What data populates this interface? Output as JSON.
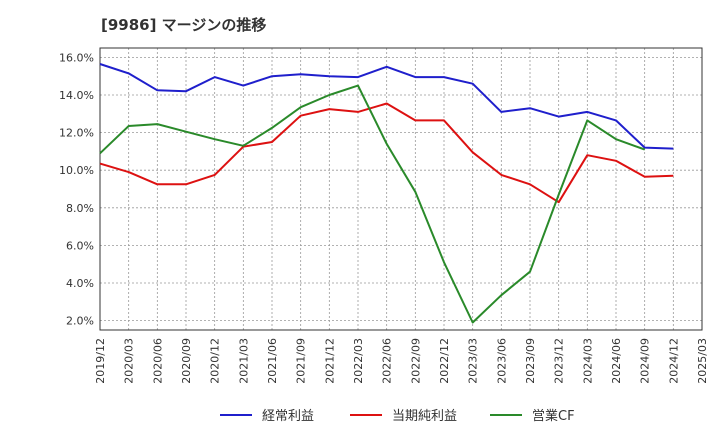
{
  "chart_data": {
    "type": "line",
    "title": "[9986]  マージンの推移",
    "xlabel": "",
    "ylabel": "",
    "x": [
      "2019/12",
      "2020/03",
      "2020/06",
      "2020/09",
      "2020/12",
      "2021/03",
      "2021/06",
      "2021/09",
      "2021/12",
      "2022/03",
      "2022/06",
      "2022/09",
      "2022/12",
      "2023/03",
      "2023/06",
      "2023/09",
      "2023/12",
      "2024/03",
      "2024/06",
      "2024/09",
      "2024/12",
      "2025/03"
    ],
    "ylim": [
      1.5,
      16.5
    ],
    "yticks": [
      2.0,
      4.0,
      6.0,
      8.0,
      10.0,
      12.0,
      14.0,
      16.0
    ],
    "ytick_labels": [
      "2.0%",
      "4.0%",
      "6.0%",
      "8.0%",
      "10.0%",
      "12.0%",
      "14.0%",
      "16.0%"
    ],
    "grid": true,
    "legend_position": "bottom",
    "series": [
      {
        "name": "経常利益",
        "color": "#1f1fcc",
        "values": [
          15.65,
          15.15,
          14.25,
          14.2,
          14.95,
          14.5,
          15.0,
          15.1,
          15.0,
          14.95,
          15.5,
          14.95,
          14.95,
          14.6,
          13.1,
          13.3,
          12.85,
          13.1,
          12.65,
          11.2,
          11.15,
          null
        ]
      },
      {
        "name": "当期純利益",
        "color": "#dd1111",
        "values": [
          10.35,
          9.9,
          9.25,
          9.25,
          9.75,
          11.25,
          11.5,
          12.9,
          13.25,
          13.1,
          13.55,
          12.65,
          12.65,
          10.95,
          9.75,
          9.25,
          8.3,
          10.8,
          10.5,
          9.65,
          9.7,
          null
        ]
      },
      {
        "name": "営業CF",
        "color": "#2a8a2a",
        "values": [
          10.9,
          12.35,
          12.45,
          12.05,
          11.65,
          11.3,
          12.25,
          13.35,
          14.0,
          14.5,
          11.4,
          8.85,
          5.1,
          1.9,
          3.35,
          4.6,
          8.7,
          12.65,
          11.65,
          11.1,
          null,
          null
        ]
      }
    ]
  }
}
